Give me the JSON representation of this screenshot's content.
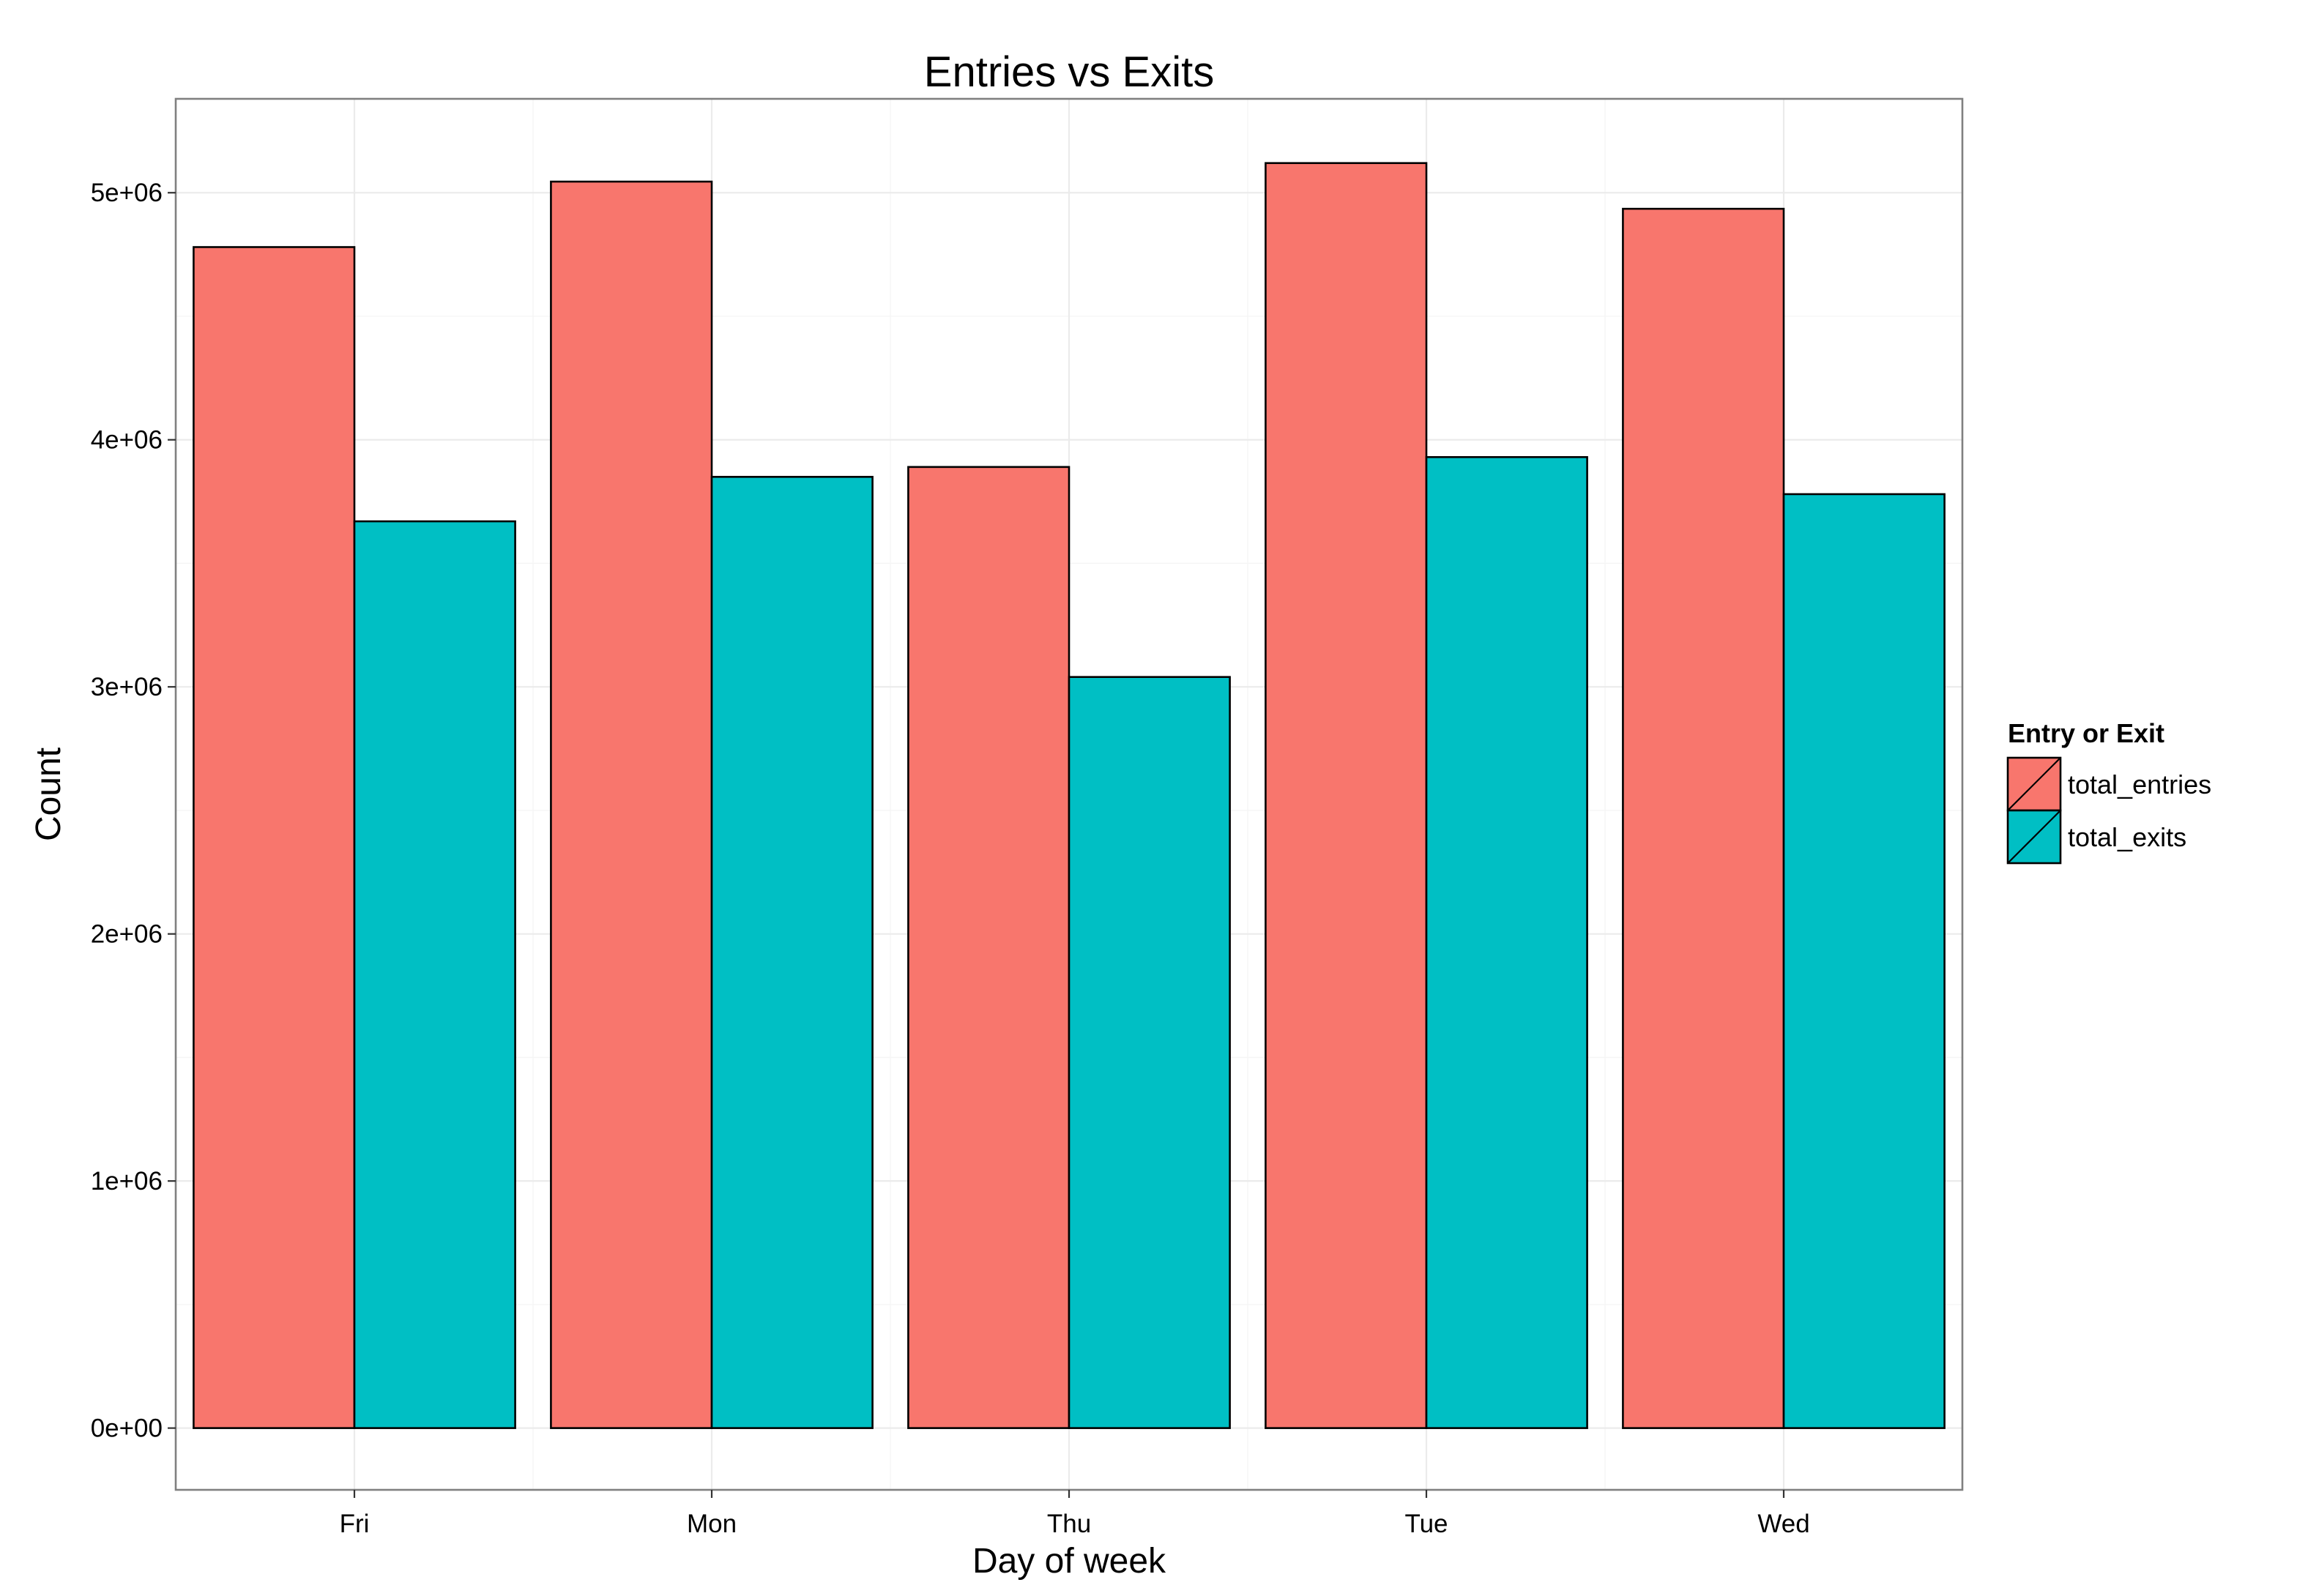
{
  "chart_data": {
    "type": "bar",
    "title": "Entries vs Exits",
    "xlabel": "Day of week",
    "ylabel": "Count",
    "categories": [
      "Fri",
      "Mon",
      "Thu",
      "Tue",
      "Wed"
    ],
    "series": [
      {
        "name": "total_entries",
        "color": "#F8766D",
        "values": [
          4780000,
          5045000,
          3890000,
          5120000,
          4935000
        ]
      },
      {
        "name": "total_exits",
        "color": "#00BFC4",
        "values": [
          3670000,
          3850000,
          3040000,
          3930000,
          3780000
        ]
      }
    ],
    "ylim": [
      -250000,
      5380000
    ],
    "yticks": [
      0,
      1000000,
      2000000,
      3000000,
      4000000,
      5000000
    ],
    "ytick_labels": [
      "0e+00",
      "1e+06",
      "2e+06",
      "3e+06",
      "4e+06",
      "5e+06"
    ],
    "grid": true,
    "legend": {
      "title": "Entry or Exit",
      "placement": "right"
    }
  }
}
